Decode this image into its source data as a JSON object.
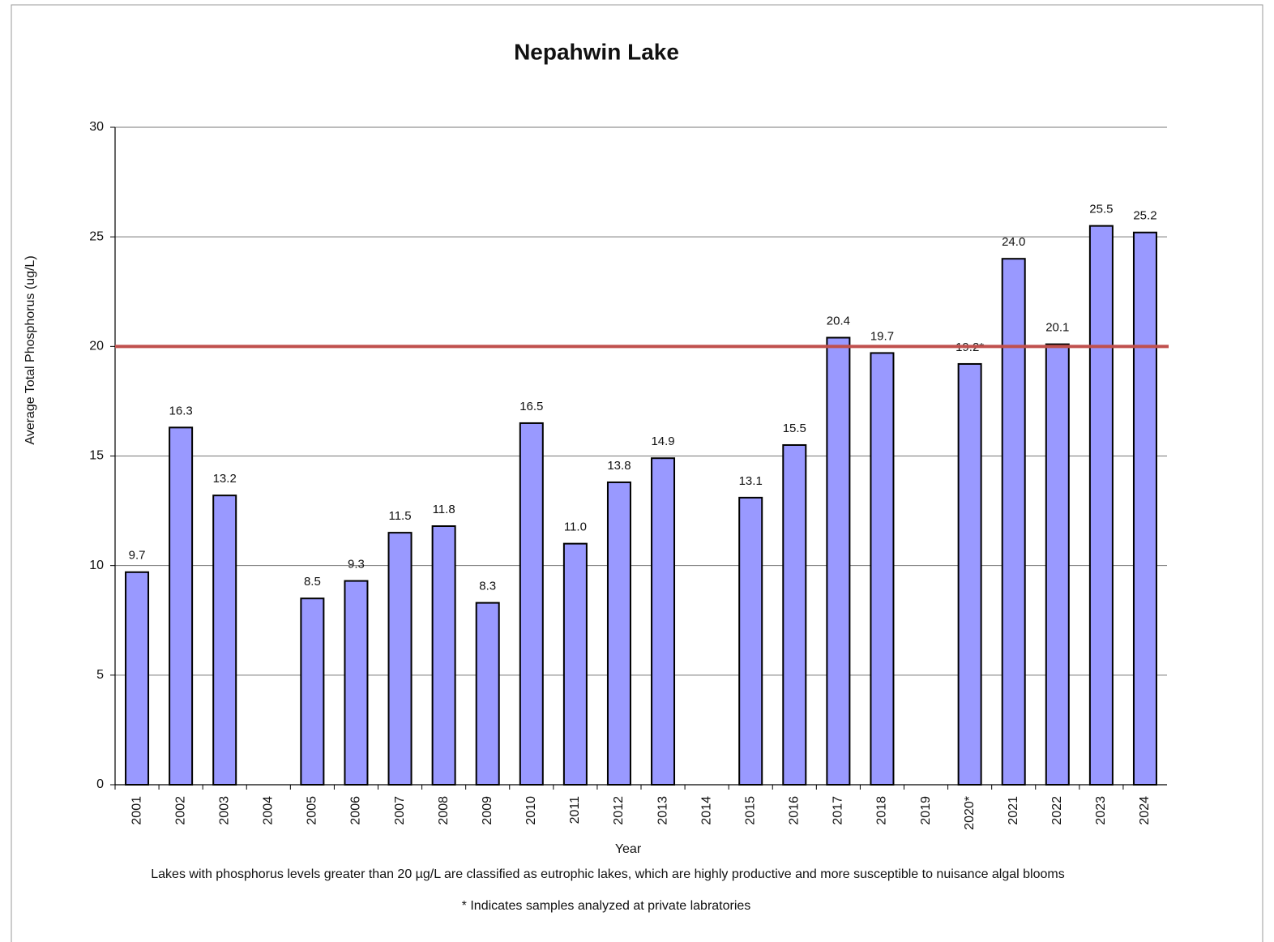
{
  "chart_data": {
    "type": "bar",
    "title": "Nepahwin Lake",
    "x_label": "Year",
    "y_label": "Average Total Phosphorus (ug/L)",
    "categories": [
      "2001",
      "2002",
      "2003",
      "2004",
      "2005",
      "2006",
      "2007",
      "2008",
      "2009",
      "2010",
      "2011",
      "2012",
      "2013",
      "2014",
      "2015",
      "2016",
      "2017",
      "2018",
      "2019",
      "2020*",
      "2021",
      "2022",
      "2023",
      "2024"
    ],
    "values": [
      9.7,
      16.3,
      13.2,
      null,
      8.5,
      9.3,
      11.5,
      11.8,
      8.3,
      16.5,
      11.0,
      13.8,
      14.9,
      null,
      13.1,
      15.5,
      20.4,
      19.7,
      null,
      19.2,
      24.0,
      20.1,
      25.5,
      25.2
    ],
    "value_labels": [
      "9.7",
      "16.3",
      "13.2",
      null,
      "8.5",
      "9.3",
      "11.5",
      "11.8",
      "8.3",
      "16.5",
      "11.0",
      "13.8",
      "14.9",
      null,
      "13.1",
      "15.5",
      "20.4",
      "19.7",
      null,
      "19.2*",
      "24.0",
      "20.1",
      "25.5",
      "25.2"
    ],
    "color": "#9999ff",
    "reference_line": {
      "value": 20,
      "color": "#c0504d"
    },
    "ylim": [
      0,
      30
    ],
    "yticks": [
      0,
      5,
      10,
      15,
      20,
      25,
      30
    ],
    "grid": true,
    "annotations": [
      "Lakes with phosphorus levels greater than 20 µg/L are classified as eutrophic lakes, which are highly productive and more susceptible to nuisance algal blooms",
      "* Indicates samples analyzed at private labratories"
    ]
  }
}
